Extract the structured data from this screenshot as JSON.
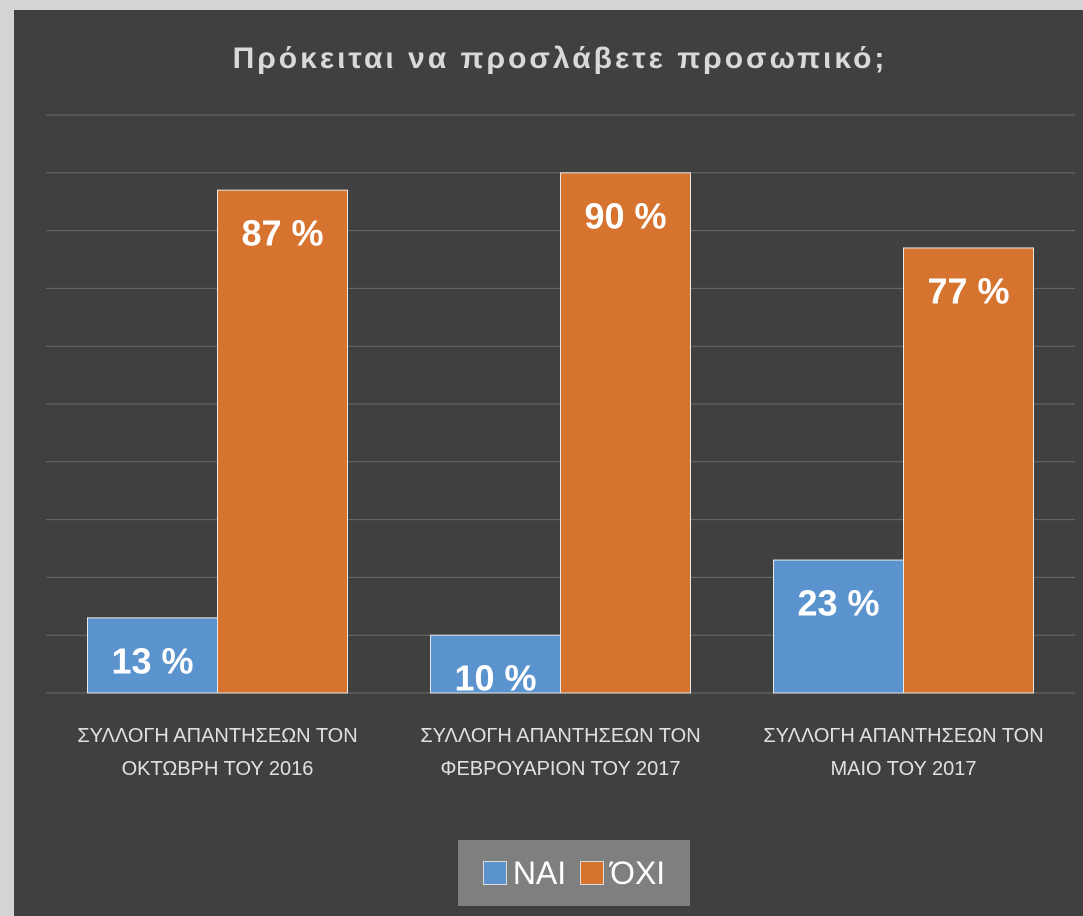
{
  "chart_data": {
    "type": "bar",
    "title": "Πρόκειται να προσλάβετε προσωπικό;",
    "categories": [
      "ΣΥΛΛΟΓΗ ΑΠΑΝΤΗΣΕΩΝ ΤΟΝ ΟΚΤΩΒΡΗ ΤΟΥ 2016",
      "ΣΥΛΛΟΓΗ ΑΠΑΝΤΗΣΕΩΝ ΤΟΝ ΦΕΒΡΟΥΑΡΙΟΝ ΤΟΥ 2017",
      "ΣΥΛΛΟΓΗ ΑΠΑΝΤΗΣΕΩΝ ΤΟΝ ΜΑΙΟ ΤΟΥ 2017"
    ],
    "series": [
      {
        "name": "ΝΑΙ",
        "color": "#5b93cf",
        "values": [
          13,
          10,
          23
        ],
        "value_labels": [
          "13 %",
          "10 %",
          "23 %"
        ]
      },
      {
        "name": "ΌΧΙ",
        "color": "#d6732f",
        "values": [
          87,
          90,
          77
        ],
        "value_labels": [
          "87 %",
          "90 %",
          "77 %"
        ]
      }
    ],
    "ylim": [
      0,
      100
    ],
    "yticks": [
      0,
      10,
      20,
      30,
      40,
      50,
      60,
      70,
      80,
      90,
      100
    ],
    "grid": true,
    "legend": "bottom"
  }
}
